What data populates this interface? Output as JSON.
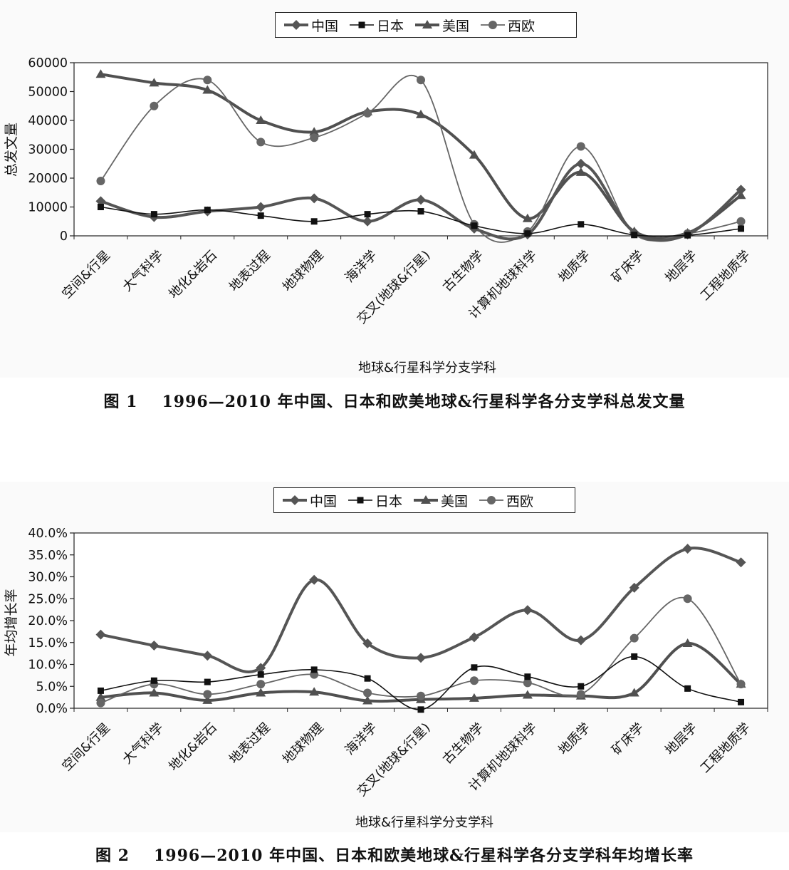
{
  "legend": [
    {
      "name": "中国",
      "color": "#555555",
      "marker": "diamond",
      "width": 4
    },
    {
      "name": "日本",
      "color": "#111111",
      "marker": "square",
      "width": 1.6
    },
    {
      "name": "美国",
      "color": "#505050",
      "marker": "triangle",
      "width": 4
    },
    {
      "name": "西欧",
      "color": "#666666",
      "marker": "circle",
      "width": 1.8
    }
  ],
  "figure1": {
    "caption_number": "图 1",
    "caption_text": "1996—2010 年中国、日本和欧美地球&行星科学各分支学科总发文量"
  },
  "figure2": {
    "caption_number": "图 2",
    "caption_text": "1996—2010 年中国、日本和欧美地球&行星科学各分支学科年均增长率"
  },
  "chart_data": [
    {
      "type": "line",
      "xlabel": "地球&行星科学分支学科",
      "ylabel": "总发文量",
      "ylim": [
        0,
        60000
      ],
      "yticks": [
        "0",
        "10000",
        "20000",
        "30000",
        "40000",
        "50000",
        "60000"
      ],
      "grid": false,
      "legend_position": "top",
      "categories": [
        "空间&行星",
        "大气科学",
        "地化&岩石",
        "地表过程",
        "地球物理",
        "海洋学",
        "交叉(地球&行星)",
        "古生物学",
        "计算机地球科学",
        "地质学",
        "矿床学",
        "地层学",
        "工程地质学"
      ],
      "series": [
        {
          "name": "中国",
          "values": [
            12000,
            6500,
            8500,
            10000,
            13000,
            5000,
            12500,
            2500,
            500,
            25000,
            1200,
            500,
            16000
          ]
        },
        {
          "name": "日本",
          "values": [
            10000,
            7500,
            9000,
            7000,
            5000,
            7500,
            8500,
            3500,
            800,
            4000,
            300,
            200,
            2500
          ]
        },
        {
          "name": "美国",
          "values": [
            56000,
            53000,
            50500,
            40000,
            36000,
            43000,
            42000,
            28000,
            6000,
            22000,
            1500,
            1000,
            14000
          ]
        },
        {
          "name": "西欧",
          "values": [
            19000,
            45000,
            54000,
            32500,
            34000,
            42500,
            54000,
            4000,
            1500,
            31000,
            700,
            800,
            5000
          ]
        }
      ]
    },
    {
      "type": "line",
      "xlabel": "地球&行星科学分支学科",
      "ylabel": "年均增长率",
      "ylim": [
        0,
        0.4
      ],
      "yticks": [
        "0.0%",
        "5.0%",
        "10.0%",
        "15.0%",
        "20.0%",
        "25.0%",
        "30.0%",
        "35.0%",
        "40.0%"
      ],
      "grid": false,
      "legend_position": "top",
      "categories": [
        "空间&行星",
        "大气科学",
        "地化&岩石",
        "地表过程",
        "地球物理",
        "海洋学",
        "交叉(地球&行星)",
        "古生物学",
        "计算机地球科学",
        "地质学",
        "矿床学",
        "地层学",
        "工程地质学"
      ],
      "series": [
        {
          "name": "中国",
          "values": [
            0.168,
            0.143,
            0.12,
            0.092,
            0.293,
            0.148,
            0.115,
            0.162,
            0.224,
            0.155,
            0.275,
            0.364,
            0.333
          ]
        },
        {
          "name": "日本",
          "values": [
            0.04,
            0.063,
            0.06,
            0.077,
            0.088,
            0.068,
            -0.003,
            0.093,
            0.072,
            0.05,
            0.118,
            0.045,
            0.014
          ]
        },
        {
          "name": "美国",
          "values": [
            0.025,
            0.035,
            0.018,
            0.035,
            0.037,
            0.017,
            0.02,
            0.023,
            0.03,
            0.028,
            0.035,
            0.148,
            0.055
          ]
        },
        {
          "name": "西欧",
          "values": [
            0.012,
            0.055,
            0.032,
            0.055,
            0.077,
            0.035,
            0.028,
            0.063,
            0.058,
            0.032,
            0.16,
            0.25,
            0.055
          ]
        }
      ]
    }
  ]
}
